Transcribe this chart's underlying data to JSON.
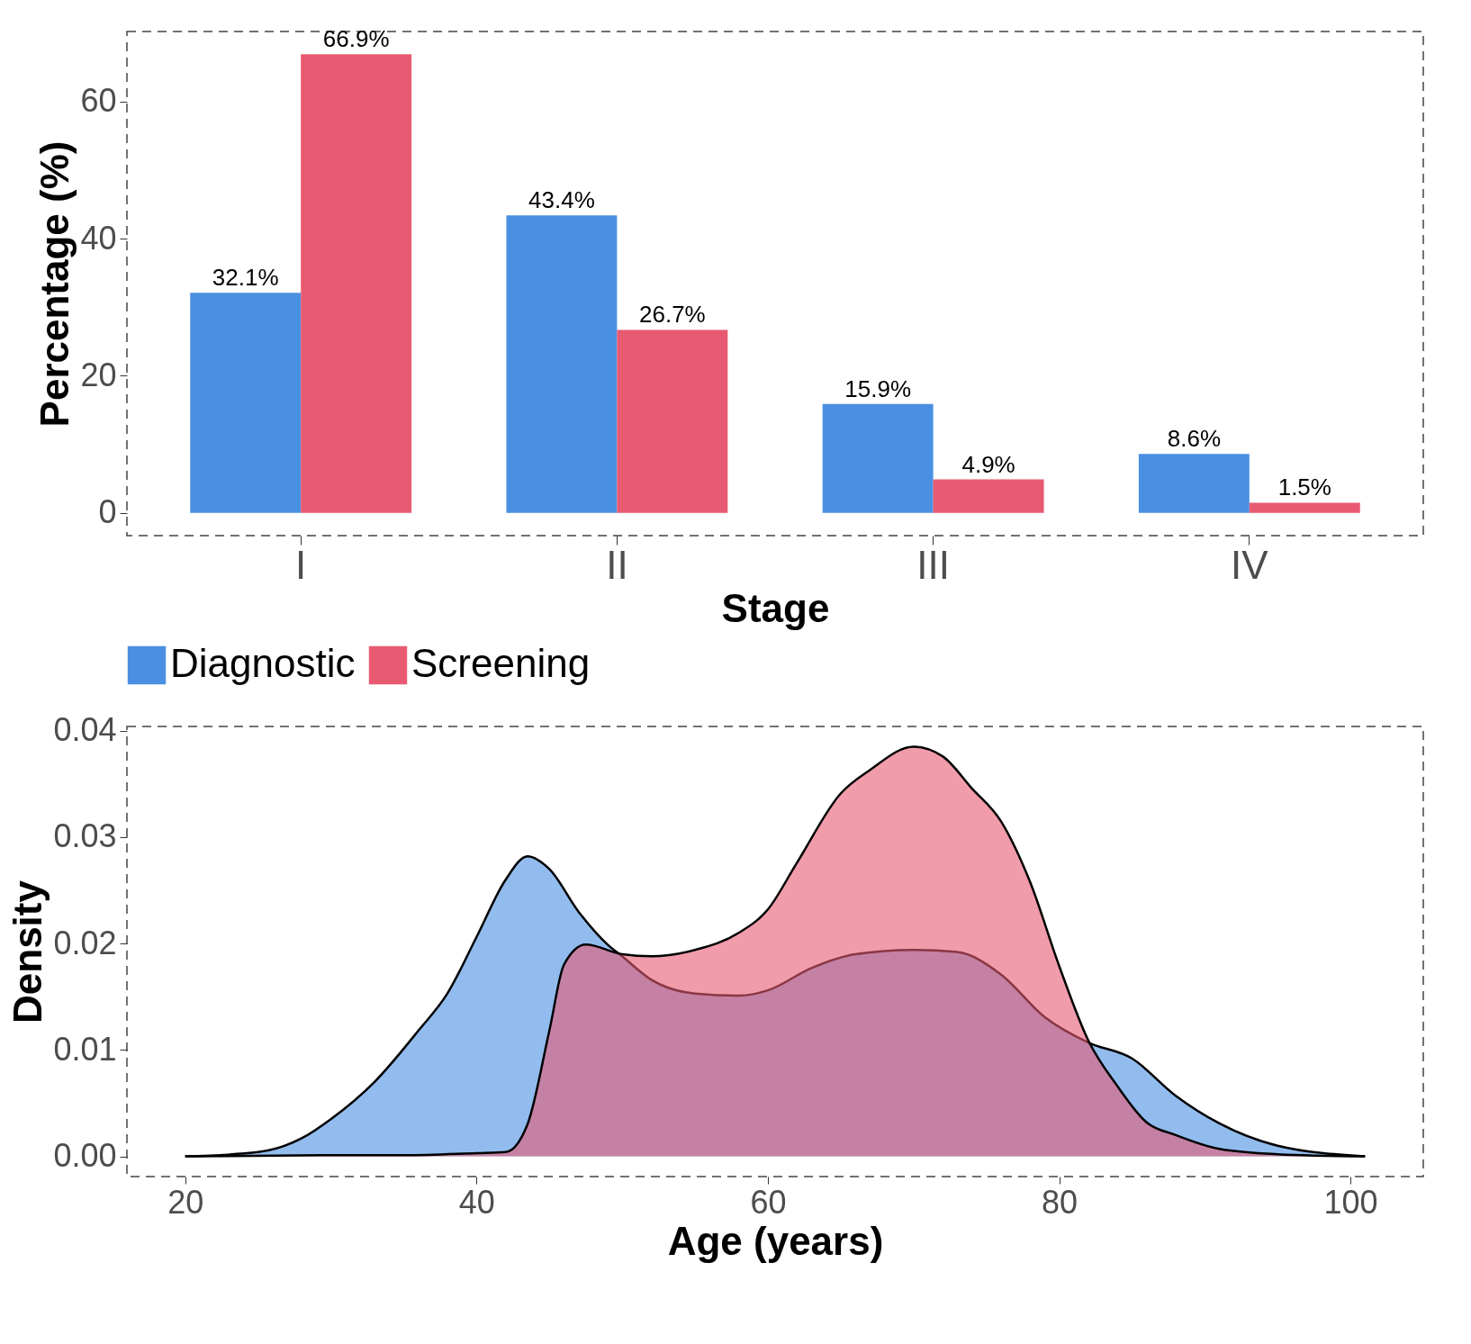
{
  "chart_data": [
    {
      "type": "bar",
      "xlabel": "Stage",
      "ylabel": "Percentage (%)",
      "categories": [
        "I",
        "II",
        "III",
        "IV"
      ],
      "ylim": [
        -3.3,
        70.2
      ],
      "yticks": [
        0,
        20,
        40,
        60
      ],
      "legend": "bottom",
      "grid": false,
      "series": [
        {
          "name": "Diagnostic",
          "color": "#4a90e2",
          "values": [
            32.1,
            43.4,
            15.9,
            8.6
          ],
          "value_labels": [
            "32.1%",
            "43.4%",
            "15.9%",
            "8.6%"
          ]
        },
        {
          "name": "Screening",
          "color": "#e85a71",
          "values": [
            66.9,
            26.7,
            4.9,
            1.5
          ],
          "value_labels": [
            "66.9%",
            "26.7%",
            "4.9%",
            "1.5%"
          ]
        }
      ]
    },
    {
      "type": "area",
      "xlabel": "Age (years)",
      "ylabel": "Density",
      "xlim": [
        16,
        105
      ],
      "xticks": [
        20,
        40,
        60,
        80,
        100
      ],
      "ylim": [
        -0.0019,
        0.0404
      ],
      "yticks": [
        {
          "value": 0,
          "label": "0.00"
        },
        {
          "value": 0.01,
          "label": "0.01"
        },
        {
          "value": 0.02,
          "label": "0.02"
        },
        {
          "value": 0.03,
          "label": "0.03"
        },
        {
          "value": 0.04,
          "label": "0.04"
        }
      ],
      "legend": false,
      "grid": false,
      "series": [
        {
          "color": "#4a90e2",
          "x": [
            20,
            25,
            28,
            30,
            33,
            36,
            38,
            40,
            42,
            43.5,
            45,
            47,
            49,
            50,
            52,
            55,
            58,
            60,
            63,
            66,
            70,
            73,
            76,
            79,
            82,
            85,
            88,
            91,
            95,
            101
          ],
          "values": [
            0,
            0.0004,
            0.0017,
            0.0035,
            0.007,
            0.0118,
            0.0153,
            0.0206,
            0.026,
            0.0282,
            0.027,
            0.023,
            0.0199,
            0.0188,
            0.0166,
            0.0153,
            0.0151,
            0.0156,
            0.0177,
            0.019,
            0.0194,
            0.0192,
            0.0171,
            0.0131,
            0.0107,
            0.0092,
            0.0057,
            0.0031,
            0.001,
            0
          ]
        },
        {
          "color": "#e85a71",
          "x": [
            20,
            30,
            35,
            40,
            42,
            43.5,
            45,
            46,
            47.5,
            50,
            52,
            55,
            58,
            60,
            62,
            65,
            67,
            70,
            72,
            74,
            76,
            78,
            80,
            82,
            84,
            86,
            88,
            91,
            95,
            101
          ],
          "values": [
            0,
            0.0001,
            0.0001,
            0.0003,
            0.0004,
            0.003,
            0.0118,
            0.018,
            0.0199,
            0.019,
            0.0188,
            0.0194,
            0.021,
            0.0232,
            0.0276,
            0.0341,
            0.0363,
            0.0385,
            0.0376,
            0.0346,
            0.0315,
            0.0258,
            0.0179,
            0.0109,
            0.0066,
            0.0032,
            0.002,
            0.0007,
            0.0002,
            0
          ]
        }
      ]
    }
  ]
}
